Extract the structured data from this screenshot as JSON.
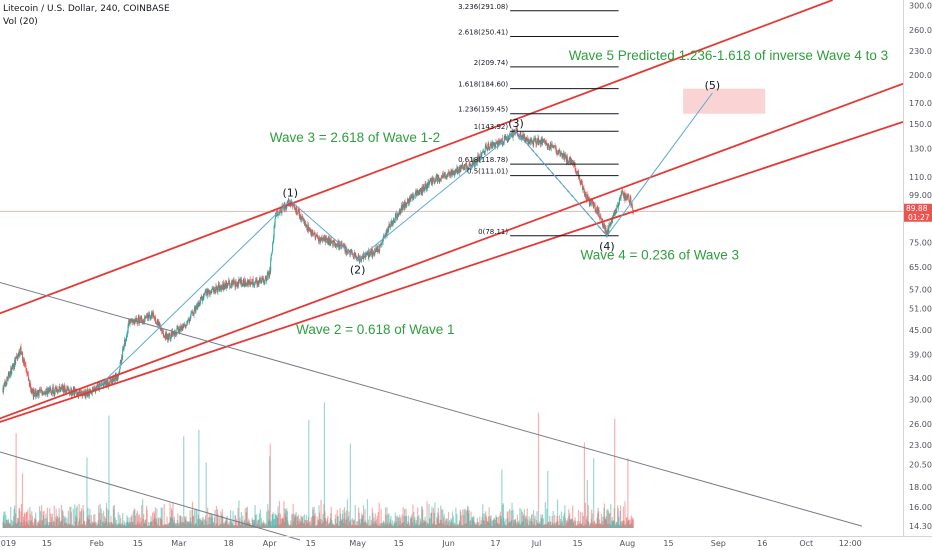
{
  "header": {
    "symbol_line": "Litecoin / U.S. Dollar, 240, COINBASE",
    "volume_line": "Vol (20)"
  },
  "chart_data": {
    "type": "candlestick",
    "title": "Litecoin / U.S. Dollar, 240, COINBASE",
    "y_scale": "log",
    "ylim": [
      13.5,
      310
    ],
    "xlim": [
      "2018-12-30",
      "2019-11-03"
    ],
    "price_axis_ticks": [
      300,
      260,
      230,
      200,
      170,
      150,
      130,
      110,
      99,
      89.88,
      75,
      65,
      57,
      51,
      45,
      39,
      34,
      30,
      26,
      23,
      20.5,
      18,
      16,
      14.3
    ],
    "price_axis_labels": [
      "300.00",
      "260.00",
      "230.00",
      "200.00",
      "170.00",
      "150.00",
      "130.00",
      "110.00",
      "99.00",
      "89.88",
      "75.00",
      "65.00",
      "57.00",
      "51.00",
      "45.00",
      "39.00",
      "34.00",
      "30.00",
      "26.00",
      "23.00",
      "20.50",
      "18.00",
      "16.00",
      "14.30"
    ],
    "time_axis": [
      {
        "date": "2019-01-01",
        "label": "2019"
      },
      {
        "date": "2019-01-15",
        "label": "15"
      },
      {
        "date": "2019-02-01",
        "label": "Feb"
      },
      {
        "date": "2019-02-15",
        "label": "15"
      },
      {
        "date": "2019-03-01",
        "label": "Mar"
      },
      {
        "date": "2019-03-18",
        "label": "18"
      },
      {
        "date": "2019-04-01",
        "label": "Apr"
      },
      {
        "date": "2019-04-15",
        "label": "15"
      },
      {
        "date": "2019-05-01",
        "label": "May"
      },
      {
        "date": "2019-05-15",
        "label": "15"
      },
      {
        "date": "2019-06-01",
        "label": "Jun"
      },
      {
        "date": "2019-06-17",
        "label": "17"
      },
      {
        "date": "2019-07-01",
        "label": "Jul"
      },
      {
        "date": "2019-07-15",
        "label": "15"
      },
      {
        "date": "2019-08-01",
        "label": "Aug"
      },
      {
        "date": "2019-08-15",
        "label": "15"
      },
      {
        "date": "2019-09-01",
        "label": "Sep"
      },
      {
        "date": "2019-09-16",
        "label": "16"
      },
      {
        "date": "2019-10-01",
        "label": "Oct"
      },
      {
        "date": "2019-10-16",
        "label": "12:00"
      }
    ],
    "price_path": [
      [
        "2018-12-31",
        32
      ],
      [
        "2019-01-06",
        40
      ],
      [
        "2019-01-10",
        31
      ],
      [
        "2019-01-20",
        32
      ],
      [
        "2019-01-28",
        31
      ],
      [
        "2019-02-08",
        34
      ],
      [
        "2019-02-12",
        47
      ],
      [
        "2019-02-20",
        49
      ],
      [
        "2019-02-25",
        43
      ],
      [
        "2019-03-04",
        47
      ],
      [
        "2019-03-10",
        56
      ],
      [
        "2019-03-18",
        59
      ],
      [
        "2019-03-30",
        60
      ],
      [
        "2019-04-01",
        63
      ],
      [
        "2019-04-03",
        88
      ],
      [
        "2019-04-08",
        96
      ],
      [
        "2019-04-16",
        78
      ],
      [
        "2019-04-25",
        74
      ],
      [
        "2019-05-01",
        68
      ],
      [
        "2019-05-08",
        72
      ],
      [
        "2019-05-12",
        83
      ],
      [
        "2019-05-18",
        96
      ],
      [
        "2019-05-26",
        107
      ],
      [
        "2019-06-01",
        112
      ],
      [
        "2019-06-10",
        120
      ],
      [
        "2019-06-14",
        131
      ],
      [
        "2019-06-20",
        137
      ],
      [
        "2019-06-24",
        143.92
      ],
      [
        "2019-06-28",
        135
      ],
      [
        "2019-07-03",
        136
      ],
      [
        "2019-07-08",
        128
      ],
      [
        "2019-07-14",
        118
      ],
      [
        "2019-07-18",
        98
      ],
      [
        "2019-07-22",
        90
      ],
      [
        "2019-07-25",
        79
      ],
      [
        "2019-07-27",
        86
      ],
      [
        "2019-07-30",
        100
      ],
      [
        "2019-08-02",
        96
      ],
      [
        "2019-08-03",
        89.88
      ]
    ],
    "last_price": "89.88",
    "countdown": "01:27",
    "volume_series": {
      "name": "Vol (20)",
      "range": [
        0,
        1
      ]
    },
    "fib_levels": [
      {
        "ratio": "0",
        "value": 78.11,
        "label": "0(78.11)"
      },
      {
        "ratio": "0.5",
        "value": 111.01,
        "label": "0.5(111.01)"
      },
      {
        "ratio": "0.618",
        "value": 118.78,
        "label": "0.618(118.78)"
      },
      {
        "ratio": "1",
        "value": 143.92,
        "label": "1(143.92)"
      },
      {
        "ratio": "1.236",
        "value": 159.45,
        "label": "1.236(159.45)"
      },
      {
        "ratio": "1.618",
        "value": 184.6,
        "label": "1.618(184.60)"
      },
      {
        "ratio": "2",
        "value": 209.74,
        "label": "2(209.74)"
      },
      {
        "ratio": "2.618",
        "value": 250.41,
        "label": "2.618(250.41)"
      },
      {
        "ratio": "3.236",
        "value": 291.08,
        "label": "3.236(291.08)"
      }
    ],
    "waves": [
      {
        "label": "(1)",
        "date": "2019-04-08",
        "price": 96
      },
      {
        "label": "(2)",
        "date": "2019-05-01",
        "price": 68
      },
      {
        "label": "(3)",
        "date": "2019-06-24",
        "price": 143.92
      },
      {
        "label": "(4)",
        "date": "2019-07-25",
        "price": 78.11
      },
      {
        "label": "(5)",
        "date": "2019-08-30",
        "price": 180
      }
    ],
    "target_zone": {
      "from": "2019-08-20",
      "to": "2019-09-17",
      "low": 159.45,
      "high": 184.6
    },
    "annotations": [
      "Wave 3 = 2.618 of Wave 1-2",
      "Wave 5 Predicted 1.236-1.618 of inverse Wave 4 to 3",
      "Wave 4 = 0.236 of Wave 3",
      "Wave 2 = 0.618 of Wave 1"
    ],
    "trendlines": [
      {
        "kind": "channel-top",
        "color": "#e53935",
        "from": [
          "2018-12-28",
          49
        ],
        "to": [
          "2019-10-10",
          310
        ]
      },
      {
        "kind": "channel-mid",
        "color": "#e53935",
        "from": [
          "2018-12-28",
          26.5
        ],
        "to": [
          "2019-11-03",
          190
        ]
      },
      {
        "kind": "channel-bottom",
        "color": "#e53935",
        "from": [
          "2018-12-28",
          26.0
        ],
        "to": [
          "2019-11-03",
          152
        ]
      },
      {
        "kind": "resistance",
        "color": "#787b86",
        "from": [
          "2018-12-28",
          60
        ],
        "to": [
          "2019-10-20",
          14.3
        ]
      }
    ],
    "colors": {
      "up": "#26a69a",
      "down": "#ef5350",
      "trend": "#e53935",
      "annotation": "#2e9e3e",
      "fib": "#131722",
      "wave_path": "#5aa9d6",
      "zone": "#f8c6c6",
      "gray_line": "#787b86"
    }
  }
}
